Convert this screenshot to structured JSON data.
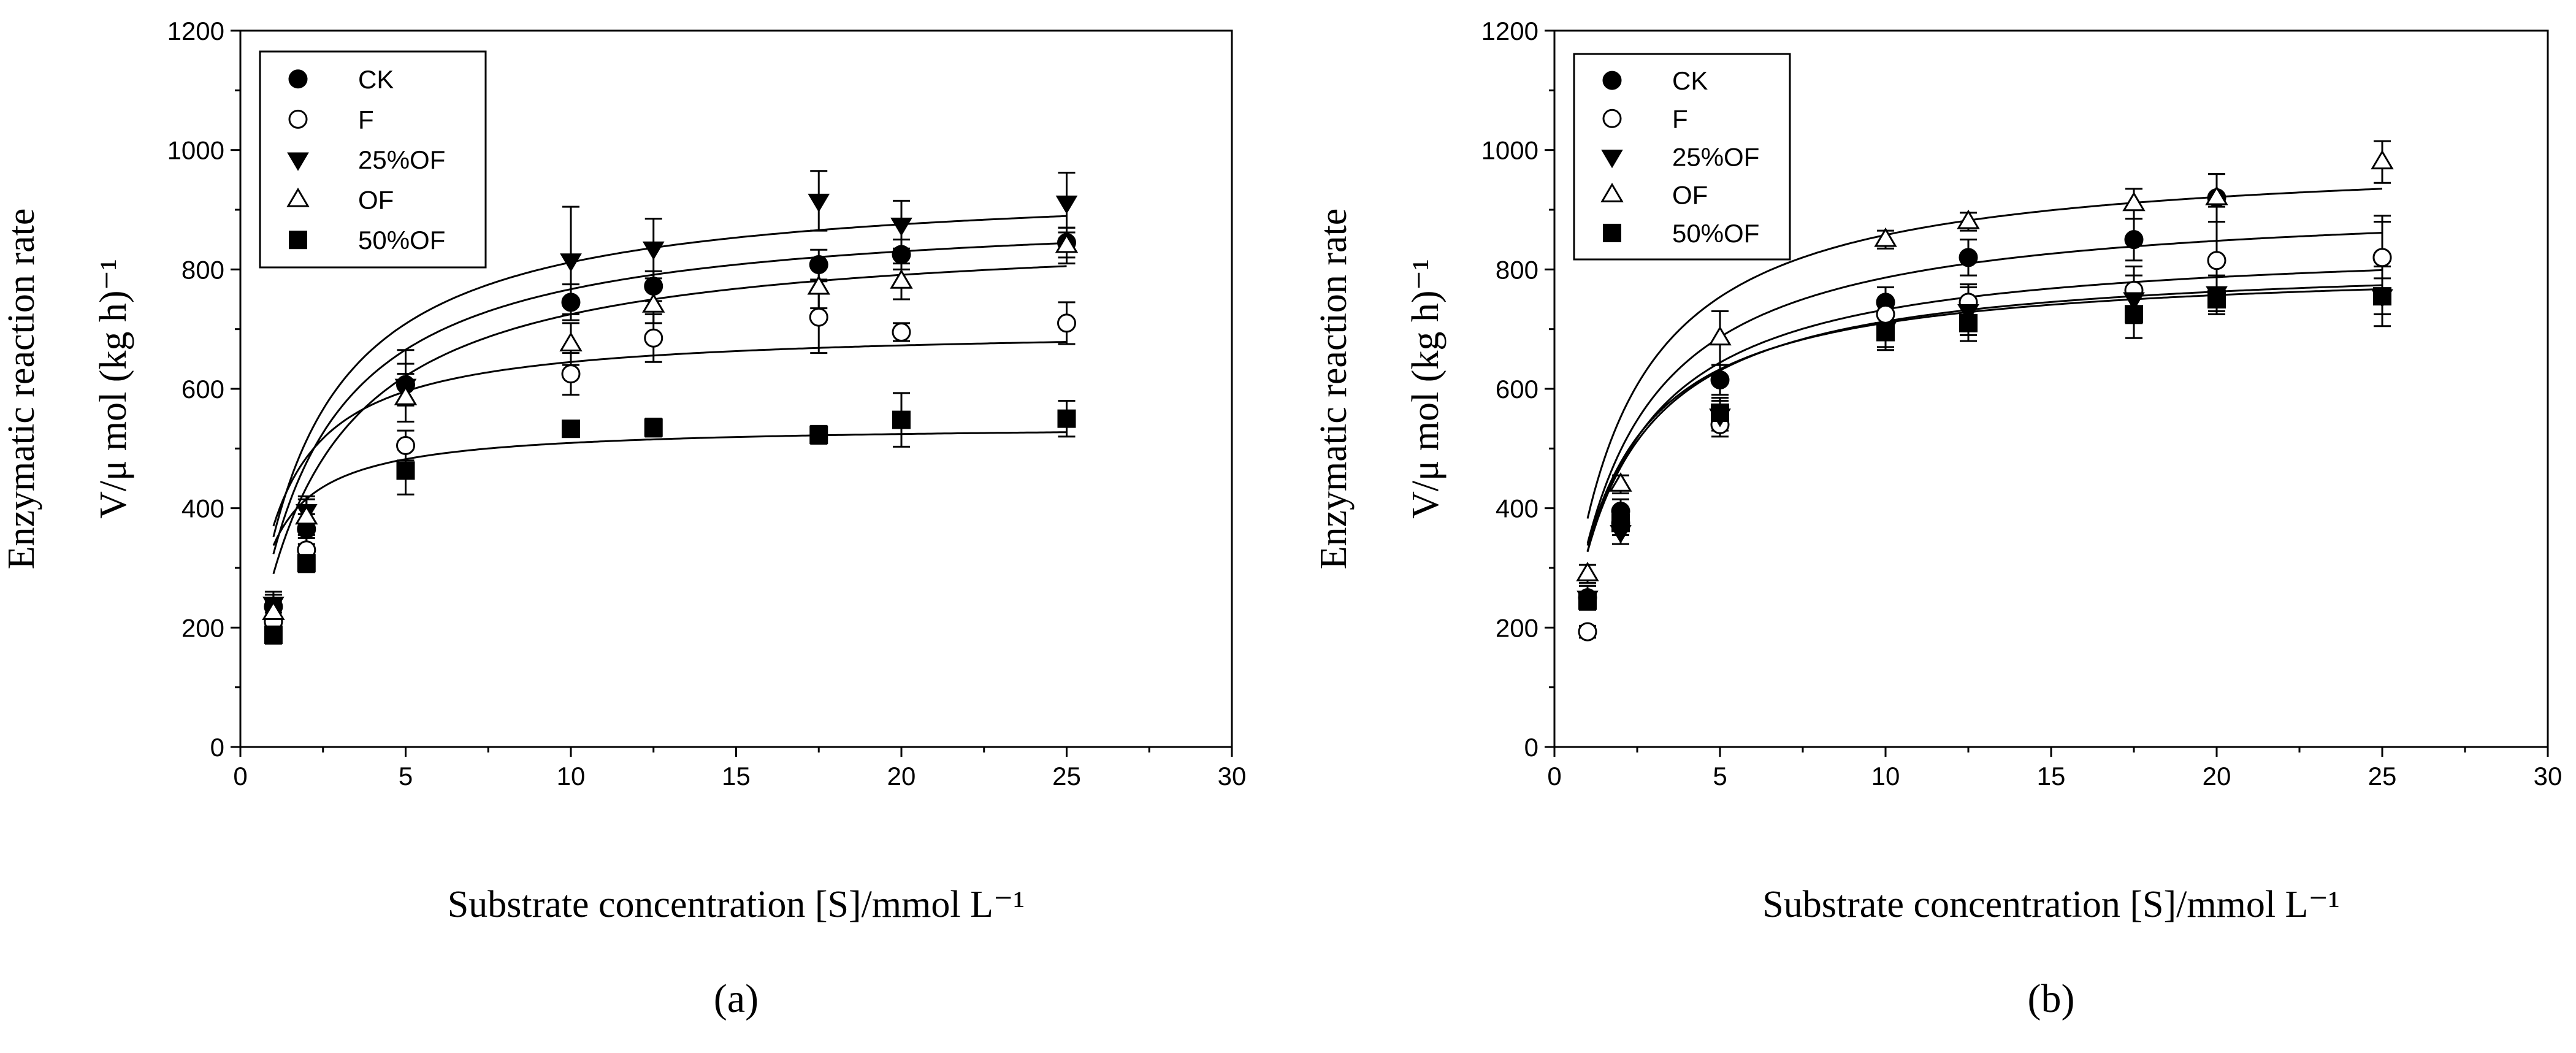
{
  "chart_data": [
    {
      "type": "scatter",
      "panel_label": "(a)",
      "xlabel": "Substrate concentration [S]/mmol L⁻¹",
      "ylabel_line1": "Enzymatic reaction rate",
      "ylabel_line2": "V/μ mol (kg h)⁻¹",
      "xlim": [
        0,
        30
      ],
      "ylim": [
        0,
        1200
      ],
      "xticks": [
        0,
        5,
        10,
        15,
        20,
        25,
        30
      ],
      "yticks": [
        0,
        200,
        400,
        600,
        800,
        1000,
        1200
      ],
      "legend_position": "top-left",
      "x": [
        1,
        2,
        5,
        10,
        12.5,
        17.5,
        20,
        25
      ],
      "series": [
        {
          "name": "CK",
          "marker": "circle-filled",
          "values": [
            235,
            365,
            607,
            745,
            772,
            808,
            825,
            845
          ],
          "errors": [
            20,
            25,
            35,
            30,
            25,
            25,
            25,
            25
          ],
          "fit": {
            "vmax": 905,
            "km": 1.8
          }
        },
        {
          "name": "F",
          "marker": "circle-open",
          "values": [
            210,
            330,
            505,
            625,
            685,
            720,
            695,
            710
          ],
          "errors": [
            15,
            20,
            25,
            35,
            40,
            60,
            15,
            35
          ],
          "fit": {
            "vmax": 703,
            "km": 0.9
          }
        },
        {
          "name": "25%OF",
          "marker": "triangle-down-filled",
          "values": [
            240,
            395,
            605,
            815,
            835,
            915,
            875,
            912
          ],
          "errors": [
            20,
            25,
            60,
            90,
            50,
            50,
            40,
            50
          ],
          "fit": {
            "vmax": 950,
            "km": 1.7
          }
        },
        {
          "name": "OF",
          "marker": "triangle-up-open",
          "values": [
            225,
            385,
            585,
            675,
            740,
            770,
            780,
            840
          ],
          "errors": [
            20,
            30,
            40,
            35,
            30,
            35,
            30,
            30
          ],
          "fit": {
            "vmax": 870,
            "km": 2.0
          }
        },
        {
          "name": "50%OF",
          "marker": "square-filled",
          "values": [
            188,
            308,
            463,
            533,
            535,
            523,
            548,
            550
          ],
          "errors": [
            15,
            15,
            40,
            10,
            15,
            15,
            45,
            30
          ],
          "fit": {
            "vmax": 540,
            "km": 0.6
          }
        }
      ]
    },
    {
      "type": "scatter",
      "panel_label": "(b)",
      "xlabel": "Substrate concentration [S]/mmol L⁻¹",
      "ylabel_line1": "Enzymatic reaction rate",
      "ylabel_line2": "V/μ mol (kg h)⁻¹",
      "xlim": [
        0,
        30
      ],
      "ylim": [
        0,
        1200
      ],
      "xticks": [
        0,
        5,
        10,
        15,
        20,
        25,
        30
      ],
      "yticks": [
        0,
        200,
        400,
        600,
        800,
        1000,
        1200
      ],
      "legend_position": "top-left",
      "x": [
        1,
        2,
        5,
        10,
        12.5,
        17.5,
        20,
        25
      ],
      "series": [
        {
          "name": "CK",
          "marker": "circle-filled",
          "values": [
            250,
            395,
            615,
            745,
            820,
            850,
            920,
            820
          ],
          "errors": [
            20,
            20,
            25,
            25,
            30,
            35,
            40,
            60
          ],
          "fit": {
            "vmax": 920,
            "km": 1.7
          }
        },
        {
          "name": "F",
          "marker": "circle-open",
          "values": [
            193,
            375,
            540,
            725,
            745,
            765,
            815,
            820
          ],
          "errors": [
            10,
            20,
            20,
            25,
            30,
            40,
            90,
            70
          ],
          "fit": {
            "vmax": 850,
            "km": 1.6
          }
        },
        {
          "name": "25%OF",
          "marker": "triangle-down-filled",
          "values": [
            250,
            360,
            555,
            700,
            730,
            750,
            760,
            755
          ],
          "errors": [
            20,
            20,
            25,
            30,
            40,
            40,
            30,
            30
          ],
          "fit": {
            "vmax": 810,
            "km": 1.4
          }
        },
        {
          "name": "OF",
          "marker": "triangle-up-open",
          "values": [
            290,
            440,
            685,
            850,
            880,
            910,
            920,
            980
          ],
          "errors": [
            15,
            15,
            45,
            15,
            15,
            25,
            40,
            35
          ],
          "fit": {
            "vmax": 995,
            "km": 1.6
          }
        },
        {
          "name": "50%OF",
          "marker": "square-filled",
          "values": [
            245,
            375,
            560,
            695,
            710,
            725,
            750,
            755
          ],
          "errors": [
            15,
            20,
            25,
            30,
            30,
            40,
            20,
            50
          ],
          "fit": {
            "vmax": 820,
            "km": 1.5
          }
        }
      ]
    }
  ]
}
